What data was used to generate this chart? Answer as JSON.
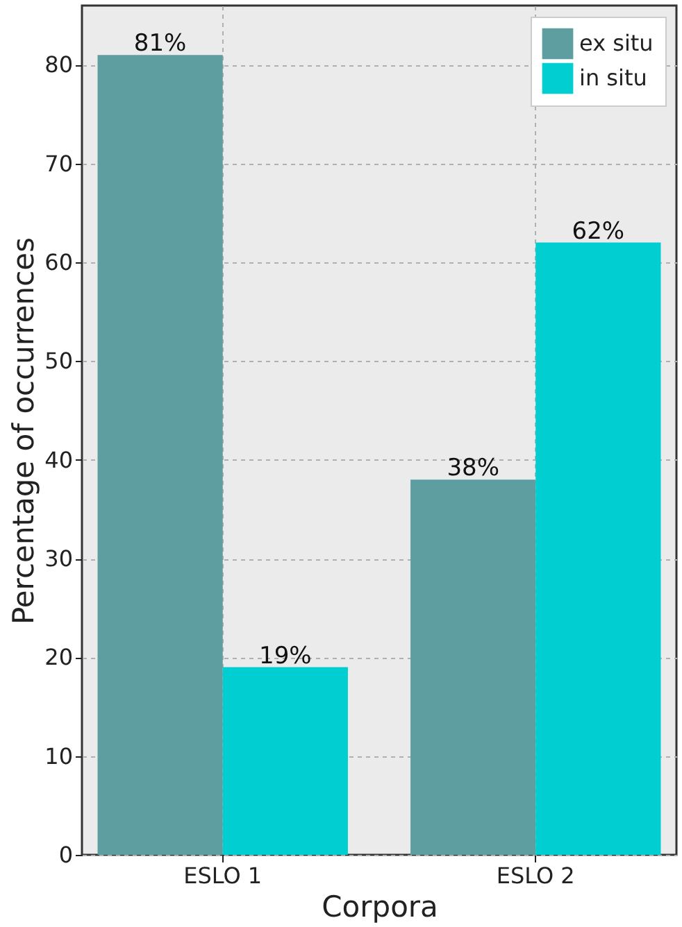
{
  "chart_data": {
    "type": "bar",
    "xlabel": "Corpora",
    "ylabel": "Percentage of occurrences",
    "categories": [
      "ESLO 1",
      "ESLO 2"
    ],
    "series": [
      {
        "name": "ex situ",
        "color": "#5f9ea0",
        "values": [
          81,
          38
        ],
        "value_labels": [
          "81%",
          "38%"
        ]
      },
      {
        "name": "in situ",
        "color": "#00ced1",
        "values": [
          19,
          62
        ],
        "value_labels": [
          "19%",
          "62%"
        ]
      }
    ],
    "ylim": [
      0,
      86
    ],
    "yticks": [
      0,
      10,
      20,
      30,
      40,
      50,
      60,
      70,
      80
    ],
    "grid": true,
    "legend": "top right"
  }
}
